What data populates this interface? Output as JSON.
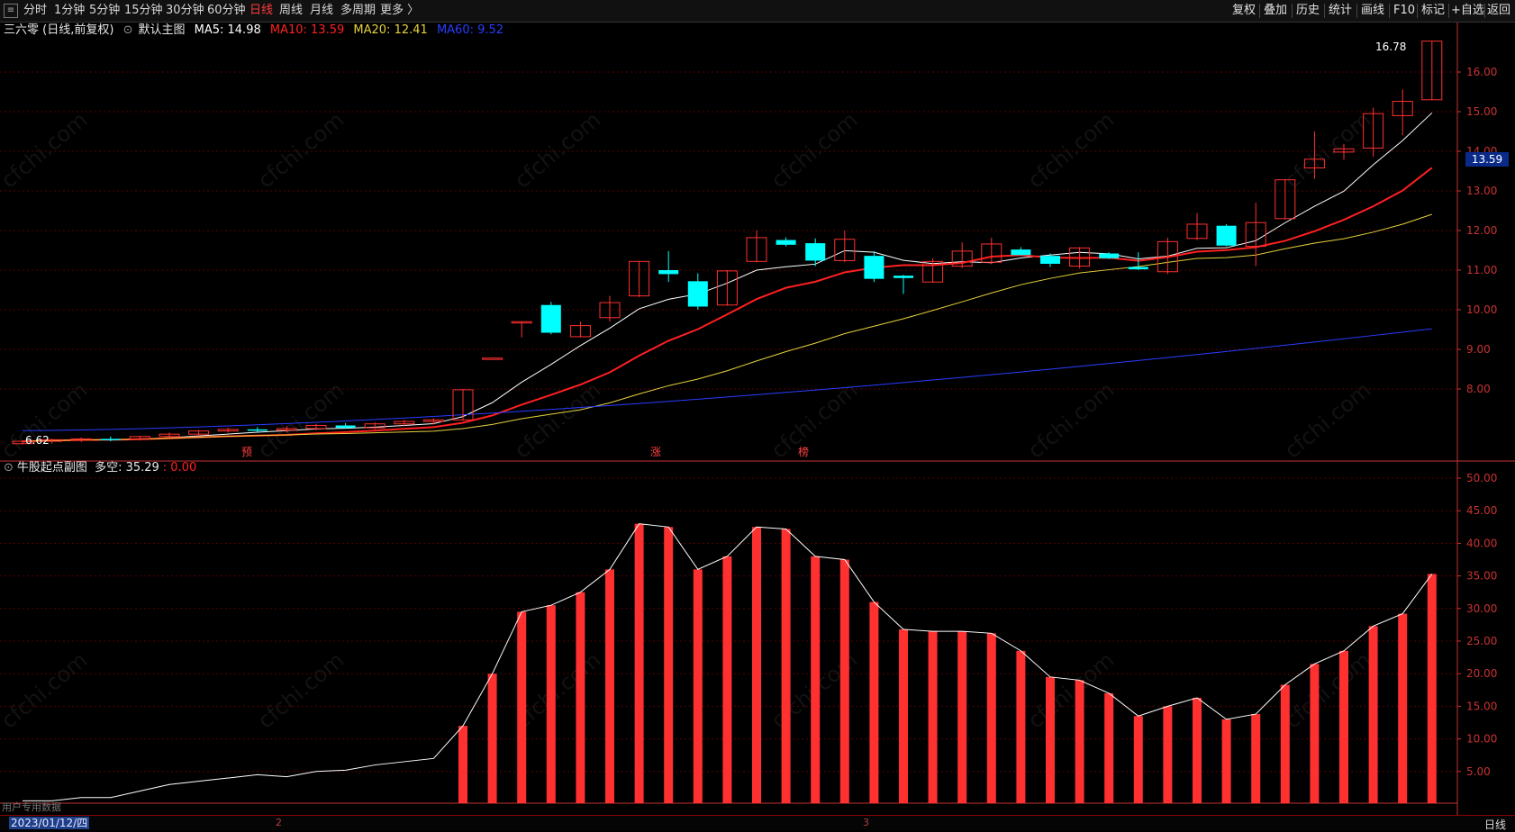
{
  "toolbar": {
    "periods": [
      "分时",
      "1分钟",
      "5分钟",
      "15分钟",
      "30分钟",
      "60分钟",
      "日线",
      "周线",
      "月线",
      "多周期",
      "更多 〉"
    ],
    "active_period": "日线",
    "right_items": [
      "复权",
      "叠加",
      "历史",
      "统计",
      "画线",
      "F10",
      "标记",
      "+自选",
      "返回"
    ]
  },
  "main_chart": {
    "title": "三六零 (日线,前复权)",
    "template": "默认主图",
    "ma": [
      {
        "label": "MA5: 14.98",
        "color": "#ffffff"
      },
      {
        "label": "MA10: 13.59",
        "color": "#ff2020"
      },
      {
        "label": "MA20: 12.41",
        "color": "#e6d23c"
      },
      {
        "label": "MA60: 9.52",
        "color": "#2a3cff"
      }
    ],
    "high_label": "16.78",
    "low_label": "6.62",
    "current_price": "13.59",
    "y_ticks": [
      "16.00",
      "15.00",
      "14.00",
      "13.00",
      "12.00",
      "11.00",
      "10.00",
      "9.00",
      "8.00"
    ],
    "event_markers": [
      "预",
      "涨",
      "榜"
    ]
  },
  "sub_chart": {
    "title": "牛股起点副图",
    "label": "多空: 35.29",
    "value2": ": 0.00",
    "y_ticks": [
      "50.00",
      "45.00",
      "40.00",
      "35.00",
      "30.00",
      "25.00",
      "20.00",
      "15.00",
      "10.00",
      "5.00"
    ]
  },
  "chart_data": {
    "type": "bar",
    "title": "牛股起点副图",
    "ylabel": "",
    "ylim": [
      0,
      52
    ],
    "series": [
      {
        "name": "多空",
        "values": [
          0.5,
          0.5,
          1,
          1,
          2,
          3,
          3.5,
          4,
          4.5,
          4.2,
          5,
          5.2,
          6,
          6.5,
          7,
          12,
          20,
          29.5,
          30.5,
          32.5,
          36,
          43,
          42.5,
          36,
          38,
          42.5,
          42.2,
          38,
          37.5,
          31,
          26.8,
          26.5,
          26.5,
          26.2,
          23.5,
          19.5,
          19,
          17,
          13.5,
          15,
          16.3,
          13,
          13.8,
          18.3,
          21.5,
          23.5,
          27.3,
          29.2,
          35.3
        ]
      }
    ]
  },
  "bottom_bar": {
    "date": "2023/01/12/四",
    "month_marks": [
      "2",
      "3"
    ],
    "period": "日线"
  },
  "watermark": "用户专用数据",
  "colors": {
    "up": "#ff3030",
    "down": "#00ffff",
    "grid": "#5a0000",
    "axis": "#c83232"
  }
}
